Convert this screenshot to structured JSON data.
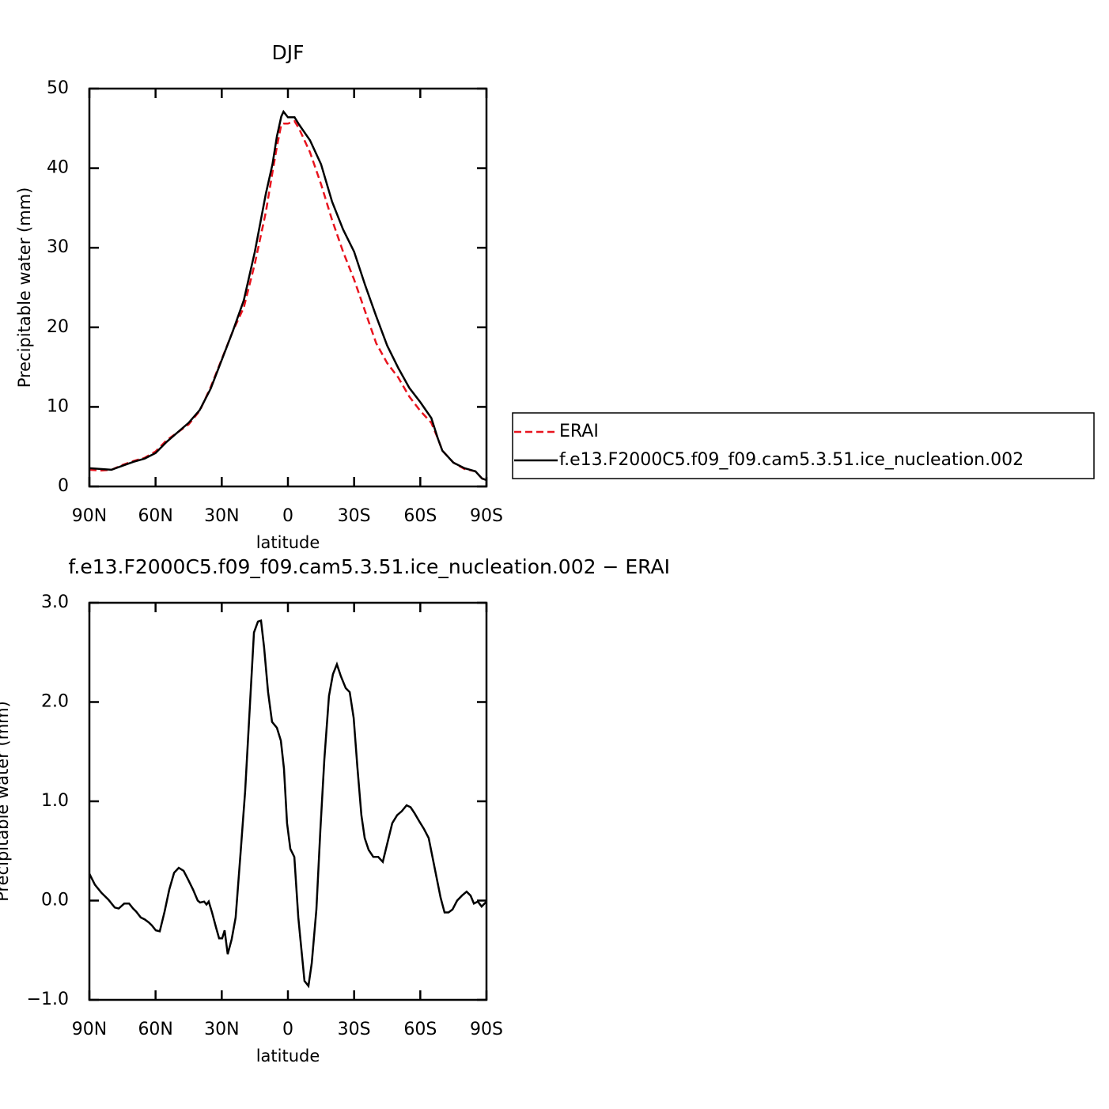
{
  "chart_data": [
    {
      "type": "line",
      "title": "DJF",
      "x_label": "latitude",
      "y_label": "Precipitable water (mm)",
      "xlim": [
        90,
        -90
      ],
      "xticks": [
        {
          "value": 90,
          "label": "90N"
        },
        {
          "value": 60,
          "label": "60N"
        },
        {
          "value": 30,
          "label": "30N"
        },
        0,
        {
          "value": -30,
          "label": "30S"
        },
        {
          "value": -60,
          "label": "60S"
        },
        {
          "value": -90,
          "label": "90S"
        }
      ],
      "ylim": [
        0,
        50
      ],
      "yticks": [
        0,
        10,
        20,
        30,
        40,
        50
      ],
      "legend": "right",
      "x": [
        90,
        85,
        80,
        75,
        70,
        65,
        60,
        55,
        50,
        45,
        40,
        35,
        30,
        25,
        20,
        15,
        10,
        7,
        5,
        3,
        2,
        0,
        -3,
        -5,
        -10,
        -15,
        -20,
        -25,
        -30,
        -35,
        -40,
        -45,
        -50,
        -55,
        -60,
        -65,
        -68,
        -70,
        -75,
        -80,
        -85,
        -88,
        -90
      ],
      "series": [
        {
          "name": "ERAI",
          "color": "#e8141e",
          "line_style": "dashed",
          "values": [
            2.1,
            2.0,
            2.1,
            2.7,
            3.2,
            3.6,
            4.4,
            5.8,
            6.8,
            7.8,
            9.5,
            12.5,
            16.0,
            19.5,
            22.5,
            28.0,
            34.5,
            39.5,
            42.7,
            45.5,
            45.6,
            45.6,
            45.9,
            45.0,
            42.0,
            38.0,
            33.5,
            29.5,
            26.0,
            22.0,
            18.0,
            15.5,
            13.7,
            11.3,
            9.5,
            8.0,
            6.0,
            4.5,
            3.0,
            2.2,
            1.9,
            1.0,
            0.8
          ]
        },
        {
          "name": "f.e13.F2000C5.f09_f09.cam5.3.51.ice_nucleation.002",
          "color": "#000000",
          "line_style": "solid",
          "values": [
            2.3,
            2.2,
            2.1,
            2.6,
            3.1,
            3.5,
            4.2,
            5.6,
            6.8,
            8.0,
            9.6,
            12.3,
            15.9,
            19.5,
            23.4,
            29.5,
            36.8,
            40.5,
            44,
            46.5,
            47.1,
            46.4,
            46.4,
            45.5,
            43.5,
            40.5,
            35.8,
            32.3,
            29.5,
            25.3,
            21.4,
            17.7,
            14.9,
            12.4,
            10.6,
            8.6,
            6.0,
            4.5,
            3.0,
            2.3,
            1.9,
            1.0,
            0.8
          ]
        }
      ]
    },
    {
      "type": "line",
      "title": "f.e13.F2000C5.f09_f09.cam5.3.51.ice_nucleation.002 − ERAI",
      "x_label": "latitude",
      "y_label": "Precipitable water (mm)",
      "xlim": [
        90,
        -90
      ],
      "xticks": [
        {
          "value": 90,
          "label": "90N"
        },
        {
          "value": 60,
          "label": "60N"
        },
        {
          "value": 30,
          "label": "30N"
        },
        0,
        {
          "value": -30,
          "label": "30S"
        },
        {
          "value": -60,
          "label": "60S"
        },
        {
          "value": -90,
          "label": "90S"
        }
      ],
      "ylim": [
        -1,
        3
      ],
      "yticks": [
        {
          "value": -1,
          "label": "−1.0"
        },
        {
          "value": 0,
          "label": "0.0"
        },
        {
          "value": 1,
          "label": "1.0"
        },
        {
          "value": 2,
          "label": "2.0"
        },
        {
          "value": 3,
          "label": "3.0"
        }
      ],
      "x": [
        90,
        87.5,
        84.6,
        81.4,
        78.5,
        76.7,
        74.2,
        72,
        70.2,
        68.8,
        66.7,
        64.9,
        63.1,
        61.7,
        59.9,
        58.1,
        55.9,
        53.8,
        51.6,
        49.5,
        47.3,
        45.2,
        43,
        40.9,
        39.8,
        38,
        36.9,
        35.9,
        34.4,
        32.6,
        31.2,
        29.8,
        28.7,
        27.3,
        25.5,
        23.7,
        21.5,
        19.4,
        17.2,
        15.4,
        13.6,
        12.2,
        10.8,
        9,
        7.2,
        5,
        3.2,
        1.8,
        0.4,
        -1.1,
        -2.9,
        -4.7,
        -6.1,
        -7.5,
        -9.3,
        -10.8,
        -12.9,
        -14.7,
        -16.5,
        -18.6,
        -20.4,
        -22.2,
        -24,
        -26.2,
        -28,
        -29.8,
        -31.5,
        -33.3,
        -34.8,
        -36.6,
        -38.7,
        -40.9,
        -43,
        -45.2,
        -47.3,
        -49.5,
        -51.6,
        -53.8,
        -55.6,
        -57.4,
        -59.5,
        -61.7,
        -63.8,
        -65.6,
        -67.4,
        -69.2,
        -71,
        -72.8,
        -74.6,
        -76.7,
        -78.9,
        -81,
        -82.8,
        -84.3,
        -86.1,
        -87.8,
        -90
      ],
      "series": [
        {
          "name": "f.e13.F2000C5.f09_f09.cam5.3.51.ice_nucleation.002 − ERAI",
          "color": "#000000",
          "line_style": "solid",
          "values": [
            0.27,
            0.16,
            0.08,
            0.01,
            -0.07,
            -0.08,
            -0.03,
            -0.03,
            -0.08,
            -0.11,
            -0.17,
            -0.19,
            -0.22,
            -0.25,
            -0.3,
            -0.31,
            -0.11,
            0.11,
            0.28,
            0.33,
            0.3,
            0.21,
            0.11,
            0.0,
            -0.02,
            -0.01,
            -0.04,
            -0.01,
            -0.12,
            -0.27,
            -0.38,
            -0.38,
            -0.3,
            -0.54,
            -0.39,
            -0.17,
            0.47,
            1.1,
            1.98,
            2.7,
            2.81,
            2.82,
            2.55,
            2.1,
            1.8,
            1.74,
            1.61,
            1.33,
            0.78,
            0.52,
            0.44,
            -0.17,
            -0.49,
            -0.81,
            -0.86,
            -0.63,
            -0.09,
            0.71,
            1.42,
            2.06,
            2.28,
            2.38,
            2.26,
            2.14,
            2.1,
            1.84,
            1.34,
            0.86,
            0.63,
            0.51,
            0.44,
            0.44,
            0.39,
            0.59,
            0.78,
            0.86,
            0.9,
            0.96,
            0.94,
            0.88,
            0.8,
            0.72,
            0.63,
            0.43,
            0.23,
            0.03,
            -0.12,
            -0.12,
            -0.09,
            0.0,
            0.05,
            0.09,
            0.05,
            -0.03,
            -0.01,
            -0.06,
            -0.01
          ]
        }
      ]
    }
  ]
}
